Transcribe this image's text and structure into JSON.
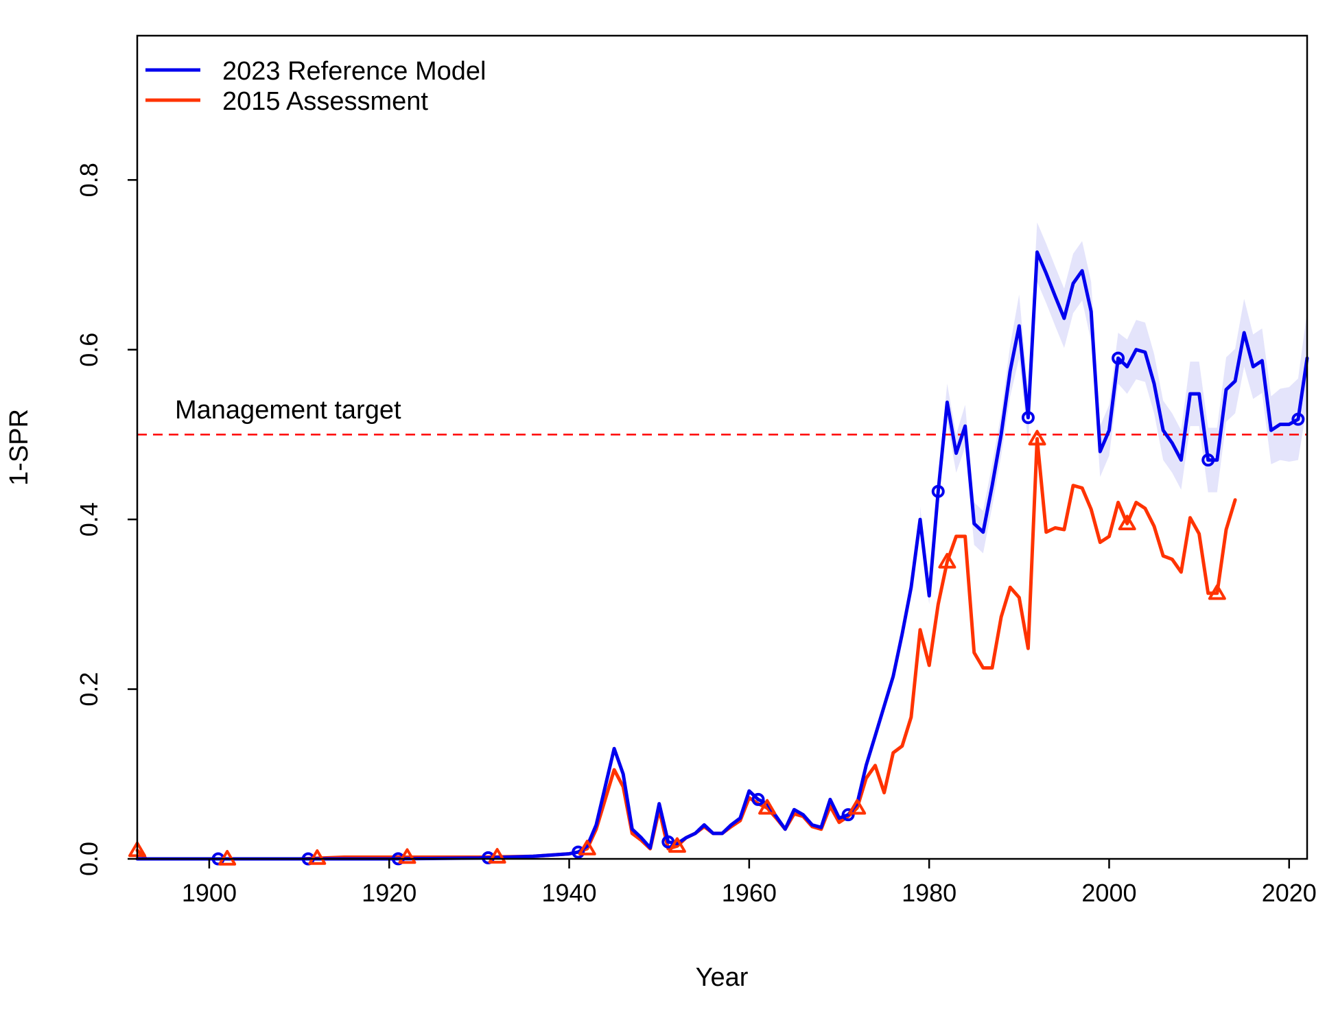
{
  "chart_data": {
    "type": "line",
    "xlabel": "Year",
    "ylabel": "1-SPR",
    "xlim": [
      1892,
      2022
    ],
    "ylim": [
      0,
      0.97
    ],
    "x_ticks": [
      1900,
      1920,
      1940,
      1960,
      1980,
      2000,
      2020
    ],
    "y_ticks": [
      0.0,
      0.2,
      0.4,
      0.6,
      0.8
    ],
    "x_tick_labels": [
      "1900",
      "1920",
      "1940",
      "1960",
      "1980",
      "2000",
      "2020"
    ],
    "y_tick_labels": [
      "0.0",
      "0.2",
      "0.4",
      "0.6",
      "0.8"
    ],
    "legend_position": "top-left",
    "reference_line": {
      "y": 0.5,
      "label": "Management target",
      "color": "#ff0000",
      "style": "dashed"
    },
    "series": [
      {
        "name": "2023 Reference Model",
        "color": "#0000ee",
        "band_color": "#e4e4fb",
        "marker": "circle",
        "marker_years": [
          1901,
          1911,
          1921,
          1931,
          1941,
          1951,
          1961,
          1971,
          1981,
          1991,
          2001,
          2011,
          2021
        ],
        "points": [
          [
            1892,
            0.0
          ],
          [
            1895,
            0.0
          ],
          [
            1900,
            0.0
          ],
          [
            1910,
            0.0
          ],
          [
            1920,
            0.0
          ],
          [
            1930,
            0.001
          ],
          [
            1936,
            0.003
          ],
          [
            1940,
            0.006
          ],
          [
            1941,
            0.008
          ],
          [
            1942,
            0.015
          ],
          [
            1943,
            0.04
          ],
          [
            1944,
            0.085
          ],
          [
            1945,
            0.13
          ],
          [
            1946,
            0.1
          ],
          [
            1947,
            0.035
          ],
          [
            1948,
            0.025
          ],
          [
            1949,
            0.013
          ],
          [
            1950,
            0.065
          ],
          [
            1951,
            0.02
          ],
          [
            1952,
            0.018
          ],
          [
            1953,
            0.025
          ],
          [
            1954,
            0.03
          ],
          [
            1955,
            0.04
          ],
          [
            1956,
            0.03
          ],
          [
            1957,
            0.03
          ],
          [
            1958,
            0.04
          ],
          [
            1959,
            0.048
          ],
          [
            1960,
            0.08
          ],
          [
            1961,
            0.07
          ],
          [
            1962,
            0.065
          ],
          [
            1963,
            0.05
          ],
          [
            1964,
            0.035
          ],
          [
            1965,
            0.058
          ],
          [
            1966,
            0.052
          ],
          [
            1967,
            0.04
          ],
          [
            1968,
            0.037
          ],
          [
            1969,
            0.07
          ],
          [
            1970,
            0.048
          ],
          [
            1971,
            0.052
          ],
          [
            1972,
            0.065
          ],
          [
            1973,
            0.11
          ],
          [
            1974,
            0.145
          ],
          [
            1975,
            0.18
          ],
          [
            1976,
            0.215
          ],
          [
            1977,
            0.265
          ],
          [
            1978,
            0.32
          ],
          [
            1979,
            0.4
          ],
          [
            1980,
            0.31
          ],
          [
            1981,
            0.433
          ],
          [
            1982,
            0.538
          ],
          [
            1983,
            0.478
          ],
          [
            1984,
            0.51
          ],
          [
            1985,
            0.395
          ],
          [
            1986,
            0.385
          ],
          [
            1987,
            0.44
          ],
          [
            1988,
            0.5
          ],
          [
            1989,
            0.575
          ],
          [
            1990,
            0.628
          ],
          [
            1991,
            0.52
          ],
          [
            1992,
            0.715
          ],
          [
            1993,
            0.69
          ],
          [
            1994,
            0.663
          ],
          [
            1995,
            0.637
          ],
          [
            1996,
            0.678
          ],
          [
            1997,
            0.693
          ],
          [
            1998,
            0.645
          ],
          [
            1999,
            0.48
          ],
          [
            2000,
            0.505
          ],
          [
            2001,
            0.59
          ],
          [
            2002,
            0.58
          ],
          [
            2003,
            0.6
          ],
          [
            2004,
            0.597
          ],
          [
            2005,
            0.56
          ],
          [
            2006,
            0.505
          ],
          [
            2007,
            0.49
          ],
          [
            2008,
            0.47
          ],
          [
            2009,
            0.548
          ],
          [
            2010,
            0.548
          ],
          [
            2011,
            0.47
          ],
          [
            2012,
            0.47
          ],
          [
            2013,
            0.553
          ],
          [
            2014,
            0.563
          ],
          [
            2015,
            0.62
          ],
          [
            2016,
            0.58
          ],
          [
            2017,
            0.587
          ],
          [
            2018,
            0.505
          ],
          [
            2019,
            0.512
          ],
          [
            2020,
            0.512
          ],
          [
            2021,
            0.518
          ],
          [
            2022,
            0.59
          ]
        ],
        "band": [
          [
            1979,
            0.385,
            0.415
          ],
          [
            1980,
            0.3,
            0.32
          ],
          [
            1981,
            0.415,
            0.45
          ],
          [
            1982,
            0.515,
            0.56
          ],
          [
            1983,
            0.455,
            0.5
          ],
          [
            1984,
            0.485,
            0.535
          ],
          [
            1985,
            0.37,
            0.42
          ],
          [
            1986,
            0.36,
            0.41
          ],
          [
            1987,
            0.415,
            0.465
          ],
          [
            1988,
            0.475,
            0.525
          ],
          [
            1989,
            0.545,
            0.605
          ],
          [
            1990,
            0.59,
            0.665
          ],
          [
            1991,
            0.49,
            0.55
          ],
          [
            1992,
            0.68,
            0.75
          ],
          [
            1993,
            0.655,
            0.725
          ],
          [
            1994,
            0.628,
            0.698
          ],
          [
            1995,
            0.602,
            0.672
          ],
          [
            1996,
            0.643,
            0.713
          ],
          [
            1997,
            0.658,
            0.728
          ],
          [
            1998,
            0.61,
            0.68
          ],
          [
            1999,
            0.45,
            0.51
          ],
          [
            2000,
            0.475,
            0.535
          ],
          [
            2001,
            0.56,
            0.62
          ],
          [
            2002,
            0.548,
            0.612
          ],
          [
            2003,
            0.565,
            0.635
          ],
          [
            2004,
            0.562,
            0.632
          ],
          [
            2005,
            0.525,
            0.595
          ],
          [
            2006,
            0.47,
            0.54
          ],
          [
            2007,
            0.455,
            0.525
          ],
          [
            2008,
            0.435,
            0.505
          ],
          [
            2009,
            0.51,
            0.586
          ],
          [
            2010,
            0.51,
            0.586
          ],
          [
            2011,
            0.432,
            0.508
          ],
          [
            2012,
            0.432,
            0.508
          ],
          [
            2013,
            0.515,
            0.591
          ],
          [
            2014,
            0.525,
            0.601
          ],
          [
            2015,
            0.58,
            0.66
          ],
          [
            2016,
            0.542,
            0.618
          ],
          [
            2017,
            0.549,
            0.625
          ],
          [
            2018,
            0.465,
            0.545
          ],
          [
            2019,
            0.47,
            0.554
          ],
          [
            2020,
            0.468,
            0.556
          ],
          [
            2021,
            0.47,
            0.566
          ],
          [
            2022,
            0.535,
            0.645
          ]
        ]
      },
      {
        "name": "2015 Assessment",
        "color": "#ff3300",
        "marker": "triangle",
        "marker_years": [
          1892,
          1902,
          1912,
          1922,
          1932,
          1942,
          1952,
          1962,
          1972,
          1982,
          1992,
          2002,
          2012
        ],
        "points": [
          [
            1892,
            0.01
          ],
          [
            1893,
            0.0
          ],
          [
            1895,
            0.0
          ],
          [
            1900,
            0.0
          ],
          [
            1910,
            0.0
          ],
          [
            1915,
            0.002
          ],
          [
            1920,
            0.002
          ],
          [
            1925,
            0.002
          ],
          [
            1930,
            0.002
          ],
          [
            1936,
            0.003
          ],
          [
            1940,
            0.006
          ],
          [
            1941,
            0.008
          ],
          [
            1942,
            0.012
          ],
          [
            1943,
            0.035
          ],
          [
            1944,
            0.07
          ],
          [
            1945,
            0.105
          ],
          [
            1946,
            0.085
          ],
          [
            1947,
            0.03
          ],
          [
            1948,
            0.022
          ],
          [
            1949,
            0.012
          ],
          [
            1950,
            0.058
          ],
          [
            1951,
            0.012
          ],
          [
            1952,
            0.015
          ],
          [
            1953,
            0.025
          ],
          [
            1954,
            0.03
          ],
          [
            1955,
            0.038
          ],
          [
            1956,
            0.03
          ],
          [
            1957,
            0.03
          ],
          [
            1958,
            0.038
          ],
          [
            1959,
            0.045
          ],
          [
            1960,
            0.072
          ],
          [
            1961,
            0.065
          ],
          [
            1962,
            0.06
          ],
          [
            1963,
            0.048
          ],
          [
            1964,
            0.035
          ],
          [
            1965,
            0.053
          ],
          [
            1966,
            0.05
          ],
          [
            1967,
            0.038
          ],
          [
            1968,
            0.035
          ],
          [
            1969,
            0.062
          ],
          [
            1970,
            0.043
          ],
          [
            1971,
            0.05
          ],
          [
            1972,
            0.06
          ],
          [
            1973,
            0.095
          ],
          [
            1974,
            0.11
          ],
          [
            1975,
            0.078
          ],
          [
            1976,
            0.125
          ],
          [
            1977,
            0.133
          ],
          [
            1978,
            0.167
          ],
          [
            1979,
            0.27
          ],
          [
            1980,
            0.228
          ],
          [
            1981,
            0.3
          ],
          [
            1982,
            0.35
          ],
          [
            1983,
            0.38
          ],
          [
            1984,
            0.38
          ],
          [
            1985,
            0.243
          ],
          [
            1986,
            0.225
          ],
          [
            1987,
            0.225
          ],
          [
            1988,
            0.285
          ],
          [
            1989,
            0.32
          ],
          [
            1990,
            0.308
          ],
          [
            1991,
            0.248
          ],
          [
            1992,
            0.495
          ],
          [
            1993,
            0.385
          ],
          [
            1994,
            0.39
          ],
          [
            1995,
            0.388
          ],
          [
            1996,
            0.44
          ],
          [
            1997,
            0.437
          ],
          [
            1998,
            0.412
          ],
          [
            1999,
            0.373
          ],
          [
            2000,
            0.38
          ],
          [
            2001,
            0.42
          ],
          [
            2002,
            0.395
          ],
          [
            2003,
            0.42
          ],
          [
            2004,
            0.413
          ],
          [
            2005,
            0.392
          ],
          [
            2006,
            0.357
          ],
          [
            2007,
            0.353
          ],
          [
            2008,
            0.338
          ],
          [
            2009,
            0.402
          ],
          [
            2010,
            0.383
          ],
          [
            2011,
            0.313
          ],
          [
            2012,
            0.313
          ],
          [
            2013,
            0.388
          ],
          [
            2014,
            0.423
          ]
        ]
      }
    ]
  }
}
